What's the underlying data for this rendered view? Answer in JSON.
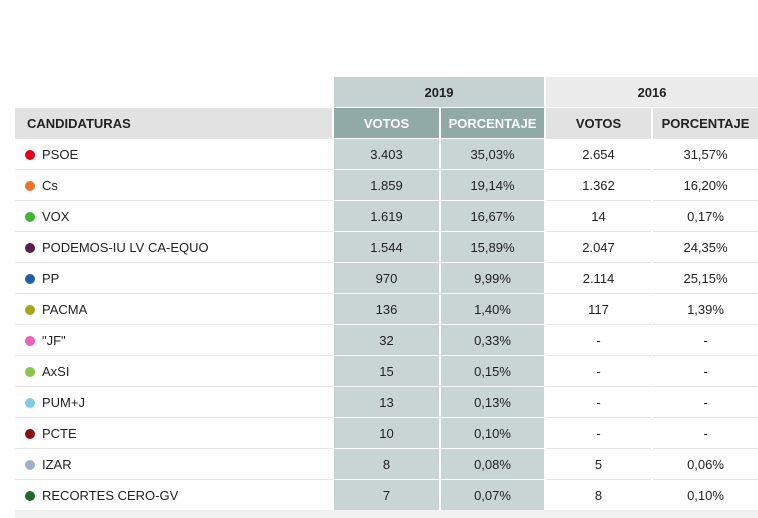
{
  "table": {
    "years": [
      "2019",
      "2016"
    ],
    "headers": {
      "candidaturas": "CANDIDATURAS",
      "votos_2019": "VOTOS",
      "porcentaje_2019": "PORCENTAJE",
      "votos_2016": "VOTOS",
      "porcentaje_2016": "PORCENTAJE"
    },
    "rows": [
      {
        "party": "PSOE",
        "color": "#e3001b",
        "v19": "3.403",
        "p19": "35,03%",
        "v16": "2.654",
        "p16": "31,57%"
      },
      {
        "party": "Cs",
        "color": "#f0712c",
        "v19": "1.859",
        "p19": "19,14%",
        "v16": "1.362",
        "p16": "16,20%"
      },
      {
        "party": "VOX",
        "color": "#3cb731",
        "v19": "1.619",
        "p19": "16,67%",
        "v16": "14",
        "p16": "0,17%"
      },
      {
        "party": "PODEMOS-IU LV CA-EQUO",
        "color": "#5e1b4e",
        "v19": "1.544",
        "p19": "15,89%",
        "v16": "2.047",
        "p16": "24,35%"
      },
      {
        "party": "PP",
        "color": "#1f5ea8",
        "v19": "970",
        "p19": "9,99%",
        "v16": "2.114",
        "p16": "25,15%"
      },
      {
        "party": "PACMA",
        "color": "#a5a41c",
        "v19": "136",
        "p19": "1,40%",
        "v16": "117",
        "p16": "1,39%"
      },
      {
        "party": "\"JF\"",
        "color": "#ef5fbd",
        "v19": "32",
        "p19": "0,33%",
        "v16": "-",
        "p16": "-"
      },
      {
        "party": "AxSI",
        "color": "#8dc44b",
        "v19": "15",
        "p19": "0,15%",
        "v16": "-",
        "p16": "-"
      },
      {
        "party": "PUM+J",
        "color": "#7fcbe8",
        "v19": "13",
        "p19": "0,13%",
        "v16": "-",
        "p16": "-"
      },
      {
        "party": "PCTE",
        "color": "#8b0f12",
        "v19": "10",
        "p19": "0,10%",
        "v16": "-",
        "p16": "-"
      },
      {
        "party": "IZAR",
        "color": "#a3b1c6",
        "v19": "8",
        "p19": "0,08%",
        "v16": "5",
        "p16": "0,06%"
      },
      {
        "party": "RECORTES CERO-GV",
        "color": "#1e6b27",
        "v19": "7",
        "p19": "0,07%",
        "v16": "8",
        "p16": "0,10%"
      }
    ]
  }
}
